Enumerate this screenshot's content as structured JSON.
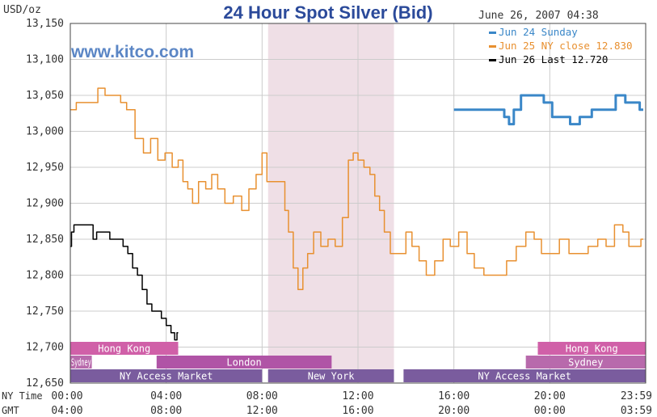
{
  "chart_data": {
    "type": "line",
    "title": "24 Hour Spot Silver (Bid)",
    "unit_label": "USD/oz",
    "timestamp": "June 26, 2007 04:38",
    "watermark": "www.kitco.com",
    "ylim": [
      12.65,
      13.15
    ],
    "y_ticks": [
      "13,150",
      "13,100",
      "13,050",
      "13,000",
      "12,950",
      "12,900",
      "12,850",
      "12,800",
      "12,750",
      "12,700",
      "12,650"
    ],
    "x_rows": [
      {
        "label": "NY Time",
        "ticks": [
          "00:00",
          "04:00",
          "08:00",
          "12:00",
          "16:00",
          "20:00",
          "23:59"
        ]
      },
      {
        "label": "GMT",
        "ticks": [
          "04:00",
          "08:00",
          "12:00",
          "16:00",
          "20:00",
          "00:00",
          "03:59"
        ]
      }
    ],
    "highlight_ny_hours": [
      8.25,
      13.5
    ],
    "sessions": [
      {
        "name": "Hong Kong",
        "row": 0,
        "start": 0,
        "end": 4.5,
        "color": "#d060a8",
        "text_color": "#ffffff"
      },
      {
        "name": "Hong Kong",
        "row": 0,
        "start": 19.5,
        "end": 24,
        "color": "#d060a8",
        "text_color": "#ffffff"
      },
      {
        "name": "Sydney",
        "row": 1,
        "start": 0,
        "end": 0.9,
        "color": "#b86aac",
        "text_color": "#ffffff"
      },
      {
        "name": "",
        "row": 1,
        "start": 0.9,
        "end": 3.6,
        "color": "#ffffff",
        "text_color": "#ffffff"
      },
      {
        "name": "London",
        "row": 1,
        "start": 3.6,
        "end": 10.9,
        "color": "#b054a6",
        "text_color": "#ffffff"
      },
      {
        "name": "Sydney",
        "row": 1,
        "start": 19.0,
        "end": 24,
        "color": "#b86aac",
        "text_color": "#ffffff"
      },
      {
        "name": "NY Access Market",
        "row": 2,
        "start": 0,
        "end": 8.0,
        "color": "#7a5c9e",
        "text_color": "#ffffff"
      },
      {
        "name": "New York",
        "row": 2,
        "start": 8.25,
        "end": 13.5,
        "color": "#7a5c9e",
        "text_color": "#ffffff"
      },
      {
        "name": "NY Access Market",
        "row": 2,
        "start": 13.9,
        "end": 24,
        "color": "#7a5c9e",
        "text_color": "#ffffff"
      }
    ],
    "series": [
      {
        "name": "Jun 24 Sunday",
        "legend": "Jun 24 Sunday",
        "color": "#3a87c8",
        "width": 3,
        "points": [
          [
            16,
            13.03
          ],
          [
            17,
            13.03
          ],
          [
            18,
            13.03
          ],
          [
            18.2,
            13.02
          ],
          [
            18.4,
            13.01
          ],
          [
            18.6,
            13.03
          ],
          [
            19,
            13.05
          ],
          [
            19.5,
            13.05
          ],
          [
            20,
            13.04
          ],
          [
            20.2,
            13.02
          ],
          [
            20.7,
            13.02
          ],
          [
            21,
            13.01
          ],
          [
            21.5,
            13.02
          ],
          [
            22,
            13.03
          ],
          [
            22.5,
            13.03
          ],
          [
            23,
            13.05
          ],
          [
            23.3,
            13.04
          ],
          [
            23.6,
            13.04
          ],
          [
            23.9,
            13.03
          ]
        ]
      },
      {
        "name": "Jun 25 NY close 12.830",
        "legend": "Jun 25 NY close 12.830",
        "color": "#e89030",
        "width": 1.5,
        "points": [
          [
            0,
            13.03
          ],
          [
            0.5,
            13.04
          ],
          [
            1,
            13.04
          ],
          [
            1.3,
            13.06
          ],
          [
            1.6,
            13.05
          ],
          [
            2,
            13.05
          ],
          [
            2.2,
            13.04
          ],
          [
            2.5,
            13.03
          ],
          [
            2.9,
            12.99
          ],
          [
            3.2,
            12.97
          ],
          [
            3.5,
            12.99
          ],
          [
            3.8,
            12.96
          ],
          [
            4.1,
            12.97
          ],
          [
            4.4,
            12.95
          ],
          [
            4.6,
            12.96
          ],
          [
            4.8,
            12.93
          ],
          [
            5.0,
            12.92
          ],
          [
            5.2,
            12.9
          ],
          [
            5.5,
            12.93
          ],
          [
            5.8,
            12.92
          ],
          [
            6.0,
            12.94
          ],
          [
            6.3,
            12.92
          ],
          [
            6.6,
            12.9
          ],
          [
            7.0,
            12.91
          ],
          [
            7.3,
            12.89
          ],
          [
            7.6,
            12.92
          ],
          [
            7.9,
            12.94
          ],
          [
            8.1,
            12.97
          ],
          [
            8.3,
            12.93
          ],
          [
            8.6,
            12.93
          ],
          [
            8.9,
            12.93
          ],
          [
            9.0,
            12.89
          ],
          [
            9.2,
            12.86
          ],
          [
            9.4,
            12.81
          ],
          [
            9.6,
            12.78
          ],
          [
            9.8,
            12.81
          ],
          [
            10.0,
            12.83
          ],
          [
            10.3,
            12.86
          ],
          [
            10.6,
            12.84
          ],
          [
            10.9,
            12.85
          ],
          [
            11.2,
            12.84
          ],
          [
            11.5,
            12.88
          ],
          [
            11.7,
            12.96
          ],
          [
            11.9,
            12.97
          ],
          [
            12.1,
            12.96
          ],
          [
            12.4,
            12.95
          ],
          [
            12.6,
            12.94
          ],
          [
            12.8,
            12.91
          ],
          [
            13.0,
            12.89
          ],
          [
            13.2,
            12.86
          ],
          [
            13.5,
            12.83
          ],
          [
            13.9,
            12.83
          ],
          [
            14.1,
            12.86
          ],
          [
            14.4,
            12.84
          ],
          [
            14.7,
            12.82
          ],
          [
            15.0,
            12.8
          ],
          [
            15.4,
            12.82
          ],
          [
            15.7,
            12.85
          ],
          [
            16.0,
            12.84
          ],
          [
            16.4,
            12.86
          ],
          [
            16.7,
            12.83
          ],
          [
            17.0,
            12.81
          ],
          [
            17.5,
            12.8
          ],
          [
            18.0,
            12.8
          ],
          [
            18.4,
            12.82
          ],
          [
            18.8,
            12.84
          ],
          [
            19.2,
            12.86
          ],
          [
            19.5,
            12.85
          ],
          [
            19.8,
            12.83
          ],
          [
            20.2,
            12.83
          ],
          [
            20.6,
            12.85
          ],
          [
            21.0,
            12.83
          ],
          [
            21.4,
            12.83
          ],
          [
            21.8,
            12.84
          ],
          [
            22.2,
            12.85
          ],
          [
            22.5,
            12.84
          ],
          [
            22.9,
            12.87
          ],
          [
            23.2,
            12.86
          ],
          [
            23.4,
            12.84
          ],
          [
            23.7,
            12.84
          ],
          [
            23.9,
            12.85
          ]
        ]
      },
      {
        "name": "Jun 26 Last 12.720",
        "legend": "Jun 26 Last 12.720",
        "color": "#000000",
        "width": 1.5,
        "points": [
          [
            0,
            12.84
          ],
          [
            0.1,
            12.86
          ],
          [
            0.2,
            12.87
          ],
          [
            0.6,
            12.87
          ],
          [
            0.9,
            12.87
          ],
          [
            1.0,
            12.85
          ],
          [
            1.2,
            12.86
          ],
          [
            1.5,
            12.86
          ],
          [
            1.8,
            12.85
          ],
          [
            2.1,
            12.85
          ],
          [
            2.3,
            12.84
          ],
          [
            2.5,
            12.83
          ],
          [
            2.7,
            12.81
          ],
          [
            2.9,
            12.8
          ],
          [
            3.1,
            12.78
          ],
          [
            3.3,
            12.76
          ],
          [
            3.5,
            12.75
          ],
          [
            3.7,
            12.75
          ],
          [
            3.9,
            12.74
          ],
          [
            4.1,
            12.73
          ],
          [
            4.3,
            12.72
          ],
          [
            4.4,
            12.71
          ],
          [
            4.5,
            12.72
          ]
        ]
      }
    ]
  }
}
